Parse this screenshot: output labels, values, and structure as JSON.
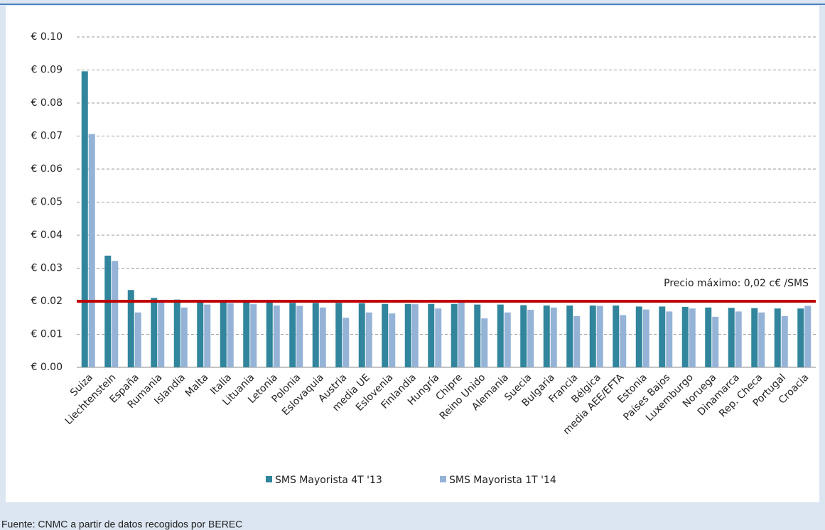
{
  "chart_data": {
    "type": "bar",
    "categories": [
      "Suiza",
      "Liechtenstein",
      "España",
      "Rumania",
      "Islandia",
      "Malta",
      "Italia",
      "Lituania",
      "Letonia",
      "Polonia",
      "Eslovaquia",
      "Austria",
      "media UE",
      "Eslovenia",
      "Finlandia",
      "Hungría",
      "Chipre",
      "Reino Unido",
      "Alemania",
      "Suecia",
      "Bulgaria",
      "Francia",
      "Bélgica",
      "media AEE/EFTA",
      "Estonia",
      "Países Bajos",
      "Luxemburgo",
      "Noruega",
      "Dinamarca",
      "Rep. Checa",
      "Portugal",
      "Croacia"
    ],
    "series": [
      {
        "name": "SMS Mayorista 4T '13",
        "color": "#31859c",
        "values": [
          0.0896,
          0.0338,
          0.0234,
          0.021,
          0.0205,
          0.0201,
          0.02,
          0.0199,
          0.0196,
          0.0195,
          0.0195,
          0.0195,
          0.0194,
          0.0192,
          0.0192,
          0.0192,
          0.0192,
          0.019,
          0.019,
          0.0188,
          0.0187,
          0.0187,
          0.0187,
          0.0187,
          0.0184,
          0.0184,
          0.0183,
          0.0181,
          0.018,
          0.0179,
          0.0178,
          0.0178
        ]
      },
      {
        "name": "SMS Mayorista 1T '14",
        "color": "#95b3d7",
        "values": [
          0.0706,
          0.0322,
          0.0166,
          0.0199,
          0.0181,
          0.019,
          0.0194,
          0.0191,
          0.0187,
          0.0186,
          0.0181,
          0.015,
          0.0166,
          0.0163,
          0.0191,
          0.0178,
          0.0199,
          0.0148,
          0.0166,
          0.0174,
          0.0181,
          0.0155,
          0.0186,
          0.0158,
          0.0175,
          0.0169,
          0.0178,
          0.0153,
          0.0169,
          0.0166,
          0.0155,
          0.0186
        ]
      }
    ],
    "ylim": [
      0,
      0.1
    ],
    "yticks": [
      {
        "value": 0,
        "label": "€ 0.00"
      },
      {
        "value": 0.01,
        "label": "€ 0.01"
      },
      {
        "value": 0.02,
        "label": "€ 0.02"
      },
      {
        "value": 0.03,
        "label": "€ 0.03"
      },
      {
        "value": 0.04,
        "label": "€ 0.04"
      },
      {
        "value": 0.05,
        "label": "€ 0.05"
      },
      {
        "value": 0.06,
        "label": "€ 0.06"
      },
      {
        "value": 0.07,
        "label": "€ 0.07"
      },
      {
        "value": 0.08,
        "label": "€ 0.08"
      },
      {
        "value": 0.09,
        "label": "€ 0.09"
      },
      {
        "value": 0.1,
        "label": "€ 0.10"
      }
    ],
    "grid": true,
    "reference_line": {
      "value": 0.02,
      "color": "#c00000",
      "label": "Precio máximo: 0,02 c€ /SMS"
    },
    "legend": "bottom"
  },
  "source": "Fuente: CNMC a partir de datos recogidos por BEREC"
}
